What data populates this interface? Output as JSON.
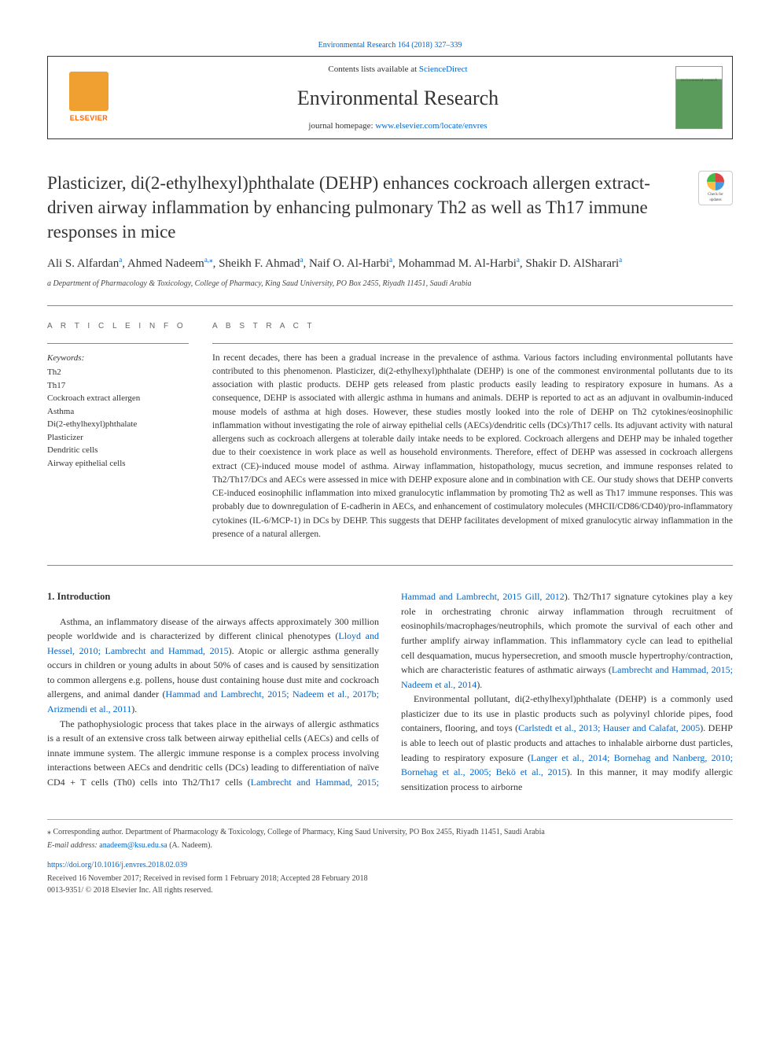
{
  "journal_ref_link": "Environmental Research 164 (2018) 327–339",
  "header": {
    "contents_prefix": "Contents lists available at ",
    "contents_link": "ScienceDirect",
    "journal_title": "Environmental Research",
    "homepage_prefix": "journal homepage: ",
    "homepage_url": "www.elsevier.com/locate/envres",
    "elsevier": "ELSEVIER",
    "cover_text": "environmental research"
  },
  "crossmark": {
    "line1": "Check for",
    "line2": "updates"
  },
  "article": {
    "title": "Plasticizer, di(2-ethylhexyl)phthalate (DEHP) enhances cockroach allergen extract-driven airway inflammation by enhancing pulmonary Th2 as well as Th17 immune responses in mice",
    "authors_html": "Ali S. Alfardan<sup class='sup'>a</sup>, Ahmed Nadeem<sup class='sup'>a,</sup><sup class='sup'>⁎</sup>, Sheikh F. Ahmad<sup class='sup'>a</sup>, Naif O. Al-Harbi<sup class='sup'>a</sup>, Mohammad M. Al-Harbi<sup class='sup'>a</sup>, Shakir D. AlSharari<sup class='sup'>a</sup>",
    "affiliation": "a Department of Pharmacology & Toxicology, College of Pharmacy, King Saud University, PO Box 2455, Riyadh 11451, Saudi Arabia"
  },
  "labels": {
    "article_info": "A R T I C L E  I N F O",
    "abstract": "A B S T R A C T",
    "keywords": "Keywords:"
  },
  "keywords": [
    "Th2",
    "Th17",
    "Cockroach extract allergen",
    "Asthma",
    "Di(2-ethylhexyl)phthalate",
    "Plasticizer",
    "Dendritic cells",
    "Airway epithelial cells"
  ],
  "abstract": "In recent decades, there has been a gradual increase in the prevalence of asthma. Various factors including environmental pollutants have contributed to this phenomenon. Plasticizer, di(2-ethylhexyl)phthalate (DEHP) is one of the commonest environmental pollutants due to its association with plastic products. DEHP gets released from plastic products easily leading to respiratory exposure in humans. As a consequence, DEHP is associated with allergic asthma in humans and animals. DEHP is reported to act as an adjuvant in ovalbumin-induced mouse models of asthma at high doses. However, these studies mostly looked into the role of DEHP on Th2 cytokines/eosinophilic inflammation without investigating the role of airway epithelial cells (AECs)/dendritic cells (DCs)/Th17 cells. Its adjuvant activity with natural allergens such as cockroach allergens at tolerable daily intake needs to be explored. Cockroach allergens and DEHP may be inhaled together due to their coexistence in work place as well as household environments. Therefore, effect of DEHP was assessed in cockroach allergens extract (CE)-induced mouse model of asthma. Airway inflammation, histopathology, mucus secretion, and immune responses related to Th2/Th17/DCs and AECs were assessed in mice with DEHP exposure alone and in combination with CE. Our study shows that DEHP converts CE-induced eosinophilic inflammation into mixed granulocytic inflammation by promoting Th2 as well as Th17 immune responses. This was probably due to downregulation of E-cadherin in AECs, and enhancement of costimulatory molecules (MHCII/CD86/CD40)/pro-inflammatory cytokines (IL-6/MCP-1) in DCs by DEHP. This suggests that DEHP facilitates development of mixed granulocytic airway inflammation in the presence of a natural allergen.",
  "intro_heading": "1. Introduction",
  "intro": {
    "p1a": "Asthma, an inflammatory disease of the airways affects approximately 300 million people worldwide and is characterized by different clinical phenotypes (",
    "p1ref1": "Lloyd and Hessel, 2010; Lambrecht and Hammad, 2015",
    "p1b": "). Atopic or allergic asthma generally occurs in children or young adults in about 50% of cases and is caused by sensitization to common allergens e.g. pollens, house dust containing house dust mite and cockroach allergens, and animal dander (",
    "p1ref2": "Hammad and Lambrecht, 2015; Nadeem et al., 2017b; Arizmendi et al., 2011",
    "p1c": ").",
    "p2a": "The pathophysiologic process that takes place in the airways of allergic asthmatics is a result of an extensive cross talk between airway epithelial cells (AECs) and cells of innate immune system. The allergic immune response is a complex process involving interactions between AECs and dendritic cells (DCs) leading to differentiation of naïve CD4 +  T cells (Th0) cells into Th2/Th17 cells (",
    "p2ref1": "Lambrecht and Hammad, 2015; Hammad and Lambrecht, 2015 Gill, 2012",
    "p2b": "). Th2/Th17 signature cytokines play a key role in orchestrating chronic airway inflammation through recruitment of eosinophils/macrophages/neutrophils, which promote the survival of each other and further amplify airway inflammation. This inflammatory cycle can lead to epithelial cell desquamation, mucus hypersecretion, and smooth muscle hypertrophy/contraction, which are characteristic features of asthmatic airways (",
    "p2ref2": "Lambrecht and Hammad, 2015; Nadeem et al., 2014",
    "p2c": ").",
    "p3a": "Environmental pollutant, di(2-ethylhexyl)phthalate (DEHP) is a commonly used plasticizer due to its use in plastic products such as polyvinyl chloride pipes, food containers, flooring, and toys (",
    "p3ref1": "Carlstedt et al., 2013; Hauser and Calafat, 2005",
    "p3b": "). DEHP is able to leech out of plastic products and attaches to inhalable airborne dust particles, leading to respiratory exposure (",
    "p3ref2": "Langer et al., 2014; Bornehag and Nanberg, 2010; Bornehag et al., 2005; Bekö et al., 2015",
    "p3c": "). In this manner, it may modify allergic sensitization process to airborne"
  },
  "footer": {
    "corr_label": "⁎ Corresponding author. Department of Pharmacology & Toxicology, College of Pharmacy, King Saud University, PO Box 2455, Riyadh 11451, Saudi Arabia",
    "email_label": "E-mail address: ",
    "email": "anadeem@ksu.edu.sa",
    "email_suffix": " (A. Nadeem).",
    "doi": "https://doi.org/10.1016/j.envres.2018.02.039",
    "received": "Received 16 November 2017; Received in revised form 1 February 2018; Accepted 28 February 2018",
    "issn": "0013-9351/ © 2018 Elsevier Inc. All rights reserved."
  }
}
